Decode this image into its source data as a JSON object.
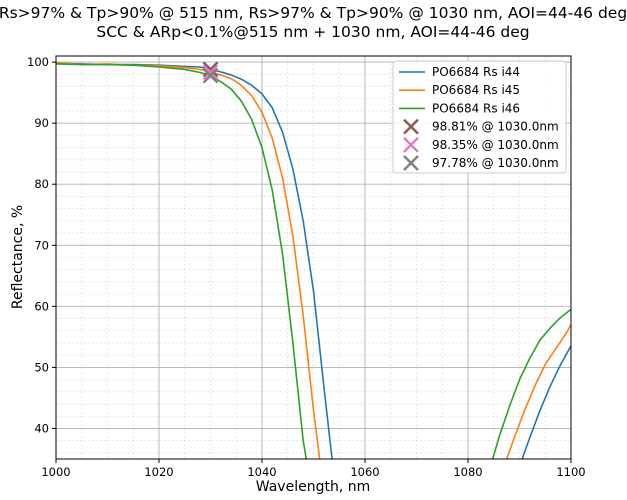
{
  "chart_data": {
    "type": "line",
    "title_lines": [
      "Rs>97% & Tp>90% @ 515 nm, Rs>97% & Tp>90% @ 1030 nm, AOI=44-46 deg",
      "SCC & ARp<0.1%@515 nm + 1030 nm, AOI=44-46 deg"
    ],
    "xlabel": "Wavelength, nm",
    "ylabel": "Reflectance, %",
    "xlim": [
      1000,
      1100
    ],
    "ylim": [
      35,
      101
    ],
    "xticks": [
      1000,
      1020,
      1040,
      1060,
      1080,
      1100
    ],
    "yticks": [
      40,
      50,
      60,
      70,
      80,
      90,
      100
    ],
    "grid": true,
    "minor_grid": true,
    "legend_position": "top-right",
    "series": [
      {
        "name": "PO6684 Rs i44",
        "color": "#1f77b4",
        "segments": [
          [
            [
              1000,
              99.8
            ],
            [
              1005,
              99.7
            ],
            [
              1010,
              99.6
            ],
            [
              1015,
              99.6
            ],
            [
              1020,
              99.5
            ],
            [
              1025,
              99.3
            ],
            [
              1028,
              99.2
            ],
            [
              1030,
              98.81
            ],
            [
              1032,
              98.4
            ],
            [
              1034,
              97.9
            ],
            [
              1036,
              97.2
            ],
            [
              1038,
              96.2
            ],
            [
              1040,
              94.8
            ],
            [
              1042,
              92.5
            ],
            [
              1044,
              88.5
            ],
            [
              1046,
              82.5
            ],
            [
              1048,
              74.0
            ],
            [
              1050,
              62.5
            ],
            [
              1052,
              47.0
            ],
            [
              1053.6,
              35.0
            ]
          ],
          [
            [
              1090.5,
              35.0
            ],
            [
              1092,
              38.5
            ],
            [
              1094,
              43.0
            ],
            [
              1096,
              47.0
            ],
            [
              1098,
              50.5
            ],
            [
              1100,
              53.5
            ]
          ]
        ]
      },
      {
        "name": "PO6684 Rs i45",
        "color": "#ff7f0e",
        "segments": [
          [
            [
              1000,
              99.9
            ],
            [
              1005,
              99.6
            ],
            [
              1010,
              99.7
            ],
            [
              1015,
              99.5
            ],
            [
              1020,
              99.4
            ],
            [
              1025,
              99.1
            ],
            [
              1028,
              98.8
            ],
            [
              1030,
              98.35
            ],
            [
              1032,
              97.9
            ],
            [
              1034,
              97.3
            ],
            [
              1036,
              96.2
            ],
            [
              1038,
              94.5
            ],
            [
              1040,
              91.8
            ],
            [
              1042,
              87.5
            ],
            [
              1044,
              81.0
            ],
            [
              1046,
              71.5
            ],
            [
              1048,
              58.5
            ],
            [
              1050,
              43.0
            ],
            [
              1051.2,
              35.0
            ]
          ],
          [
            [
              1087.5,
              35.0
            ],
            [
              1089,
              38.5
            ],
            [
              1091,
              43.0
            ],
            [
              1093,
              47.0
            ],
            [
              1095,
              50.5
            ],
            [
              1097,
              53.0
            ],
            [
              1099,
              55.5
            ],
            [
              1100,
              57.0
            ]
          ]
        ]
      },
      {
        "name": "PO6684 Rs i46",
        "color": "#2ca02c",
        "segments": [
          [
            [
              1000,
              99.7
            ],
            [
              1005,
              99.6
            ],
            [
              1010,
              99.6
            ],
            [
              1015,
              99.5
            ],
            [
              1020,
              99.2
            ],
            [
              1025,
              98.8
            ],
            [
              1028,
              98.3
            ],
            [
              1030,
              97.78
            ],
            [
              1032,
              96.8
            ],
            [
              1034,
              95.6
            ],
            [
              1036,
              93.6
            ],
            [
              1038,
              90.6
            ],
            [
              1040,
              86.0
            ],
            [
              1042,
              79.0
            ],
            [
              1044,
              68.5
            ],
            [
              1046,
              54.0
            ],
            [
              1048,
              38.0
            ],
            [
              1048.6,
              35.0
            ]
          ],
          [
            [
              1084.8,
              35.0
            ],
            [
              1086,
              38.5
            ],
            [
              1088,
              43.5
            ],
            [
              1090,
              48.0
            ],
            [
              1092,
              51.5
            ],
            [
              1094,
              54.5
            ],
            [
              1096,
              56.5
            ],
            [
              1098,
              58.2
            ],
            [
              1100,
              59.5
            ]
          ]
        ]
      }
    ],
    "markers": [
      {
        "label": "98.81% @ 1030.0nm",
        "x": 1030,
        "y": 98.81,
        "color": "#8c564b",
        "symbol": "x"
      },
      {
        "label": "98.35% @ 1030.0nm",
        "x": 1030,
        "y": 98.35,
        "color": "#e377c2",
        "symbol": "x"
      },
      {
        "label": "97.78% @ 1030.0nm",
        "x": 1030,
        "y": 97.78,
        "color": "#7f7f7f",
        "symbol": "x"
      }
    ]
  }
}
